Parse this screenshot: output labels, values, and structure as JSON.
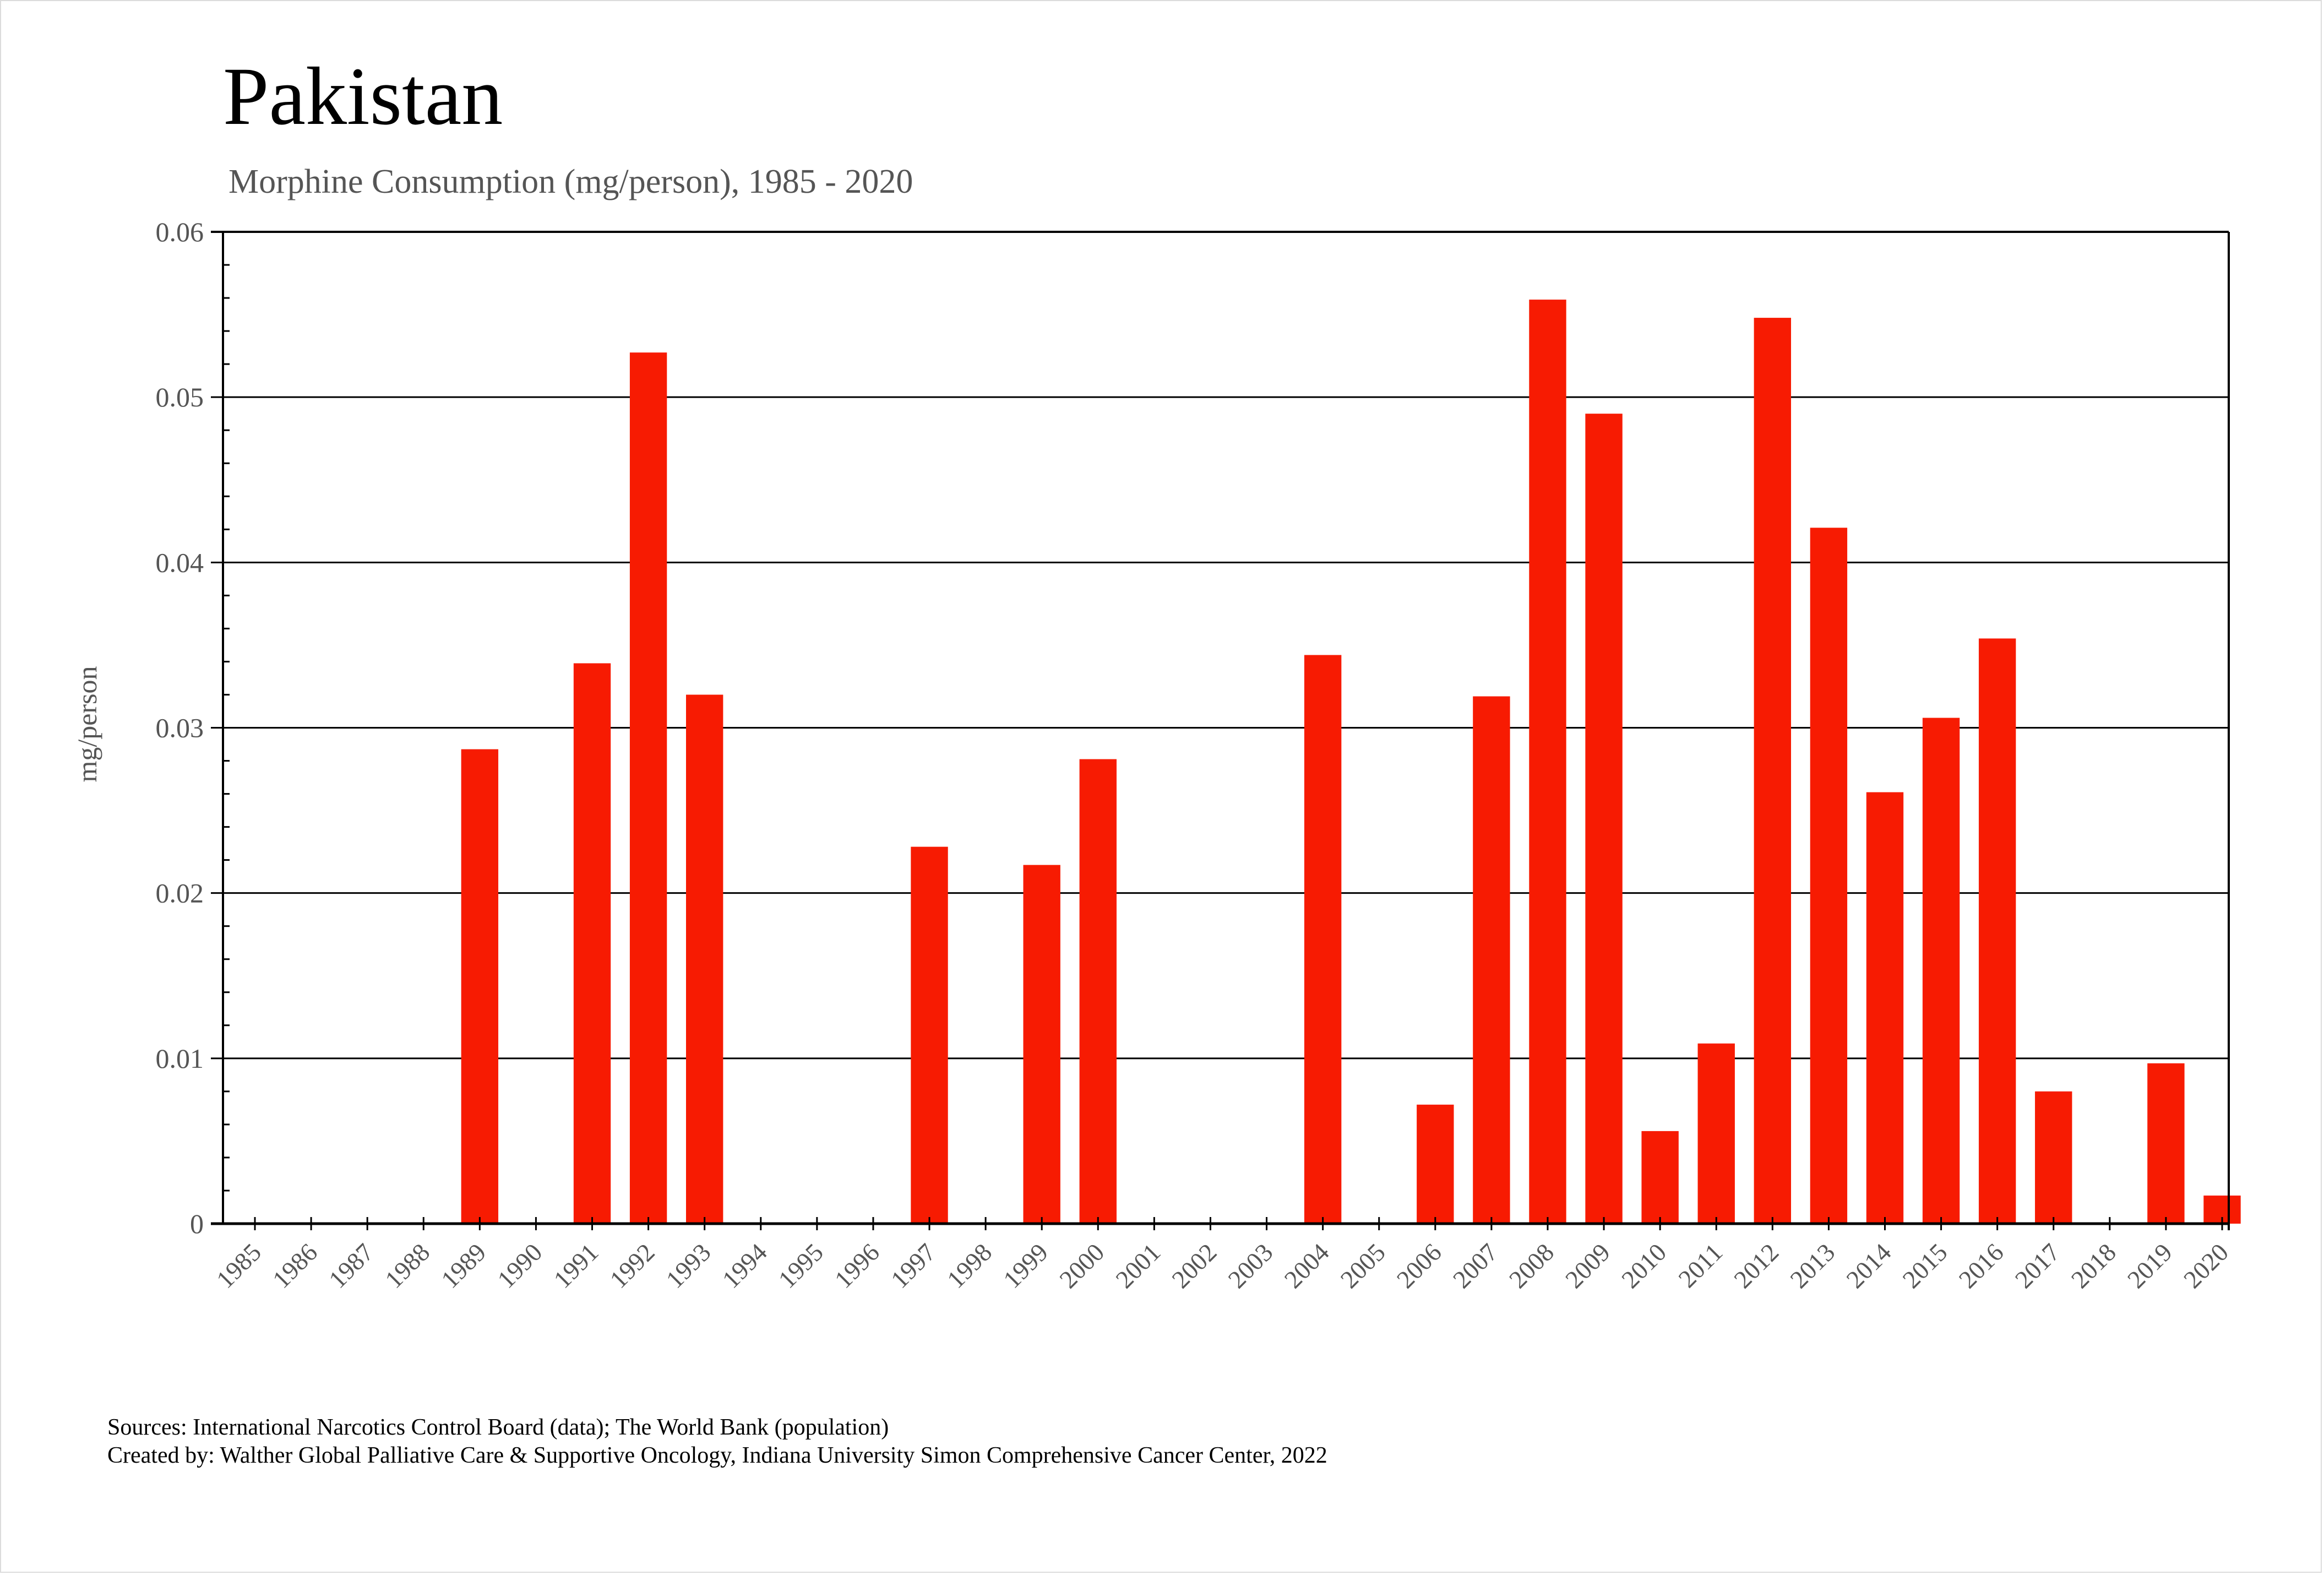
{
  "page": {
    "title": "Pakistan",
    "subtitle": "Morphine Consumption (mg/person), 1985 - 2020",
    "footer_sources": "Sources: International Narcotics Control Board (data); The World Bank (population)",
    "footer_credit": "Created by: Walther  Global Palliative Care & Supportive Oncology, Indiana University Simon Comprehensive Cancer Center, 2022"
  },
  "colors": {
    "bar": "#f71b02",
    "axis": "#000000",
    "tick_text": "#555555"
  },
  "chart_data": {
    "type": "bar",
    "title": "Pakistan",
    "subtitle": "Morphine Consumption (mg/person), 1985 - 2020",
    "xlabel": "",
    "ylabel": "mg/person",
    "ylim": [
      0,
      0.06
    ],
    "yticks": [
      "0",
      "0.01",
      "0.02",
      "0.03",
      "0.04",
      "0.05",
      "0.06"
    ],
    "ytick_values": [
      0,
      0.01,
      0.02,
      0.03,
      0.04,
      0.05,
      0.06
    ],
    "grid": "horizontal major",
    "legend": "none",
    "categories": [
      "1985",
      "1986",
      "1987",
      "1988",
      "1989",
      "1990",
      "1991",
      "1992",
      "1993",
      "1994",
      "1995",
      "1996",
      "1997",
      "1998",
      "1999",
      "2000",
      "2001",
      "2002",
      "2003",
      "2004",
      "2005",
      "2006",
      "2007",
      "2008",
      "2009",
      "2010",
      "2011",
      "2012",
      "2013",
      "2014",
      "2015",
      "2016",
      "2017",
      "2018",
      "2019",
      "2020"
    ],
    "series": [
      {
        "name": "mg/person",
        "values": [
          0,
          0,
          0,
          0,
          0.0287,
          0,
          0.0339,
          0.0527,
          0.032,
          0,
          0,
          0,
          0.0228,
          0,
          0.0217,
          0.0281,
          0,
          0,
          0,
          0.0344,
          0,
          0.0072,
          0.0319,
          0.0559,
          0.049,
          0.0056,
          0.0109,
          0.0548,
          0.0421,
          0.0261,
          0.0306,
          0.0354,
          0.008,
          0,
          0.0097,
          0.0017
        ]
      }
    ]
  }
}
